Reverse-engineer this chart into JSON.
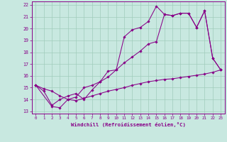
{
  "xlabel": "Windchill (Refroidissement éolien,°C)",
  "bg_color": "#c8e8e0",
  "grid_color": "#a0ccbb",
  "line_color": "#880088",
  "xlim": [
    -0.5,
    23.5
  ],
  "ylim": [
    12.8,
    22.3
  ],
  "yticks": [
    13,
    14,
    15,
    16,
    17,
    18,
    19,
    20,
    21,
    22
  ],
  "xticks": [
    0,
    1,
    2,
    3,
    4,
    5,
    6,
    7,
    8,
    9,
    10,
    11,
    12,
    13,
    14,
    15,
    16,
    17,
    18,
    19,
    20,
    21,
    22,
    23
  ],
  "line1_x": [
    0,
    1,
    2,
    3,
    4,
    5,
    6,
    7,
    8,
    9,
    10,
    11,
    12,
    13,
    14,
    15,
    16,
    17,
    18,
    19,
    20,
    21,
    22,
    23
  ],
  "line1_y": [
    15.2,
    14.7,
    13.5,
    14.0,
    14.3,
    14.5,
    14.0,
    14.8,
    15.5,
    16.4,
    16.5,
    19.3,
    19.9,
    20.1,
    20.6,
    21.9,
    21.2,
    21.1,
    21.3,
    21.3,
    20.1,
    21.5,
    17.5,
    16.5
  ],
  "line2_x": [
    0,
    2,
    3,
    4,
    5,
    6,
    7,
    8,
    9,
    10,
    11,
    12,
    13,
    14,
    15,
    16,
    17,
    18,
    19,
    20,
    21,
    22,
    23
  ],
  "line2_y": [
    15.2,
    13.4,
    13.3,
    14.0,
    14.2,
    15.0,
    15.2,
    15.5,
    15.9,
    16.5,
    17.1,
    17.6,
    18.1,
    18.7,
    18.9,
    21.2,
    21.1,
    21.3,
    21.3,
    20.1,
    21.5,
    17.5,
    16.5
  ],
  "line3_x": [
    0,
    1,
    2,
    3,
    4,
    5,
    6,
    7,
    8,
    9,
    10,
    11,
    12,
    13,
    14,
    15,
    16,
    17,
    18,
    19,
    20,
    21,
    22,
    23
  ],
  "line3_y": [
    15.2,
    14.9,
    14.7,
    14.3,
    14.0,
    13.9,
    14.1,
    14.3,
    14.5,
    14.7,
    14.85,
    15.0,
    15.2,
    15.35,
    15.5,
    15.6,
    15.7,
    15.75,
    15.85,
    15.95,
    16.05,
    16.15,
    16.3,
    16.5
  ]
}
